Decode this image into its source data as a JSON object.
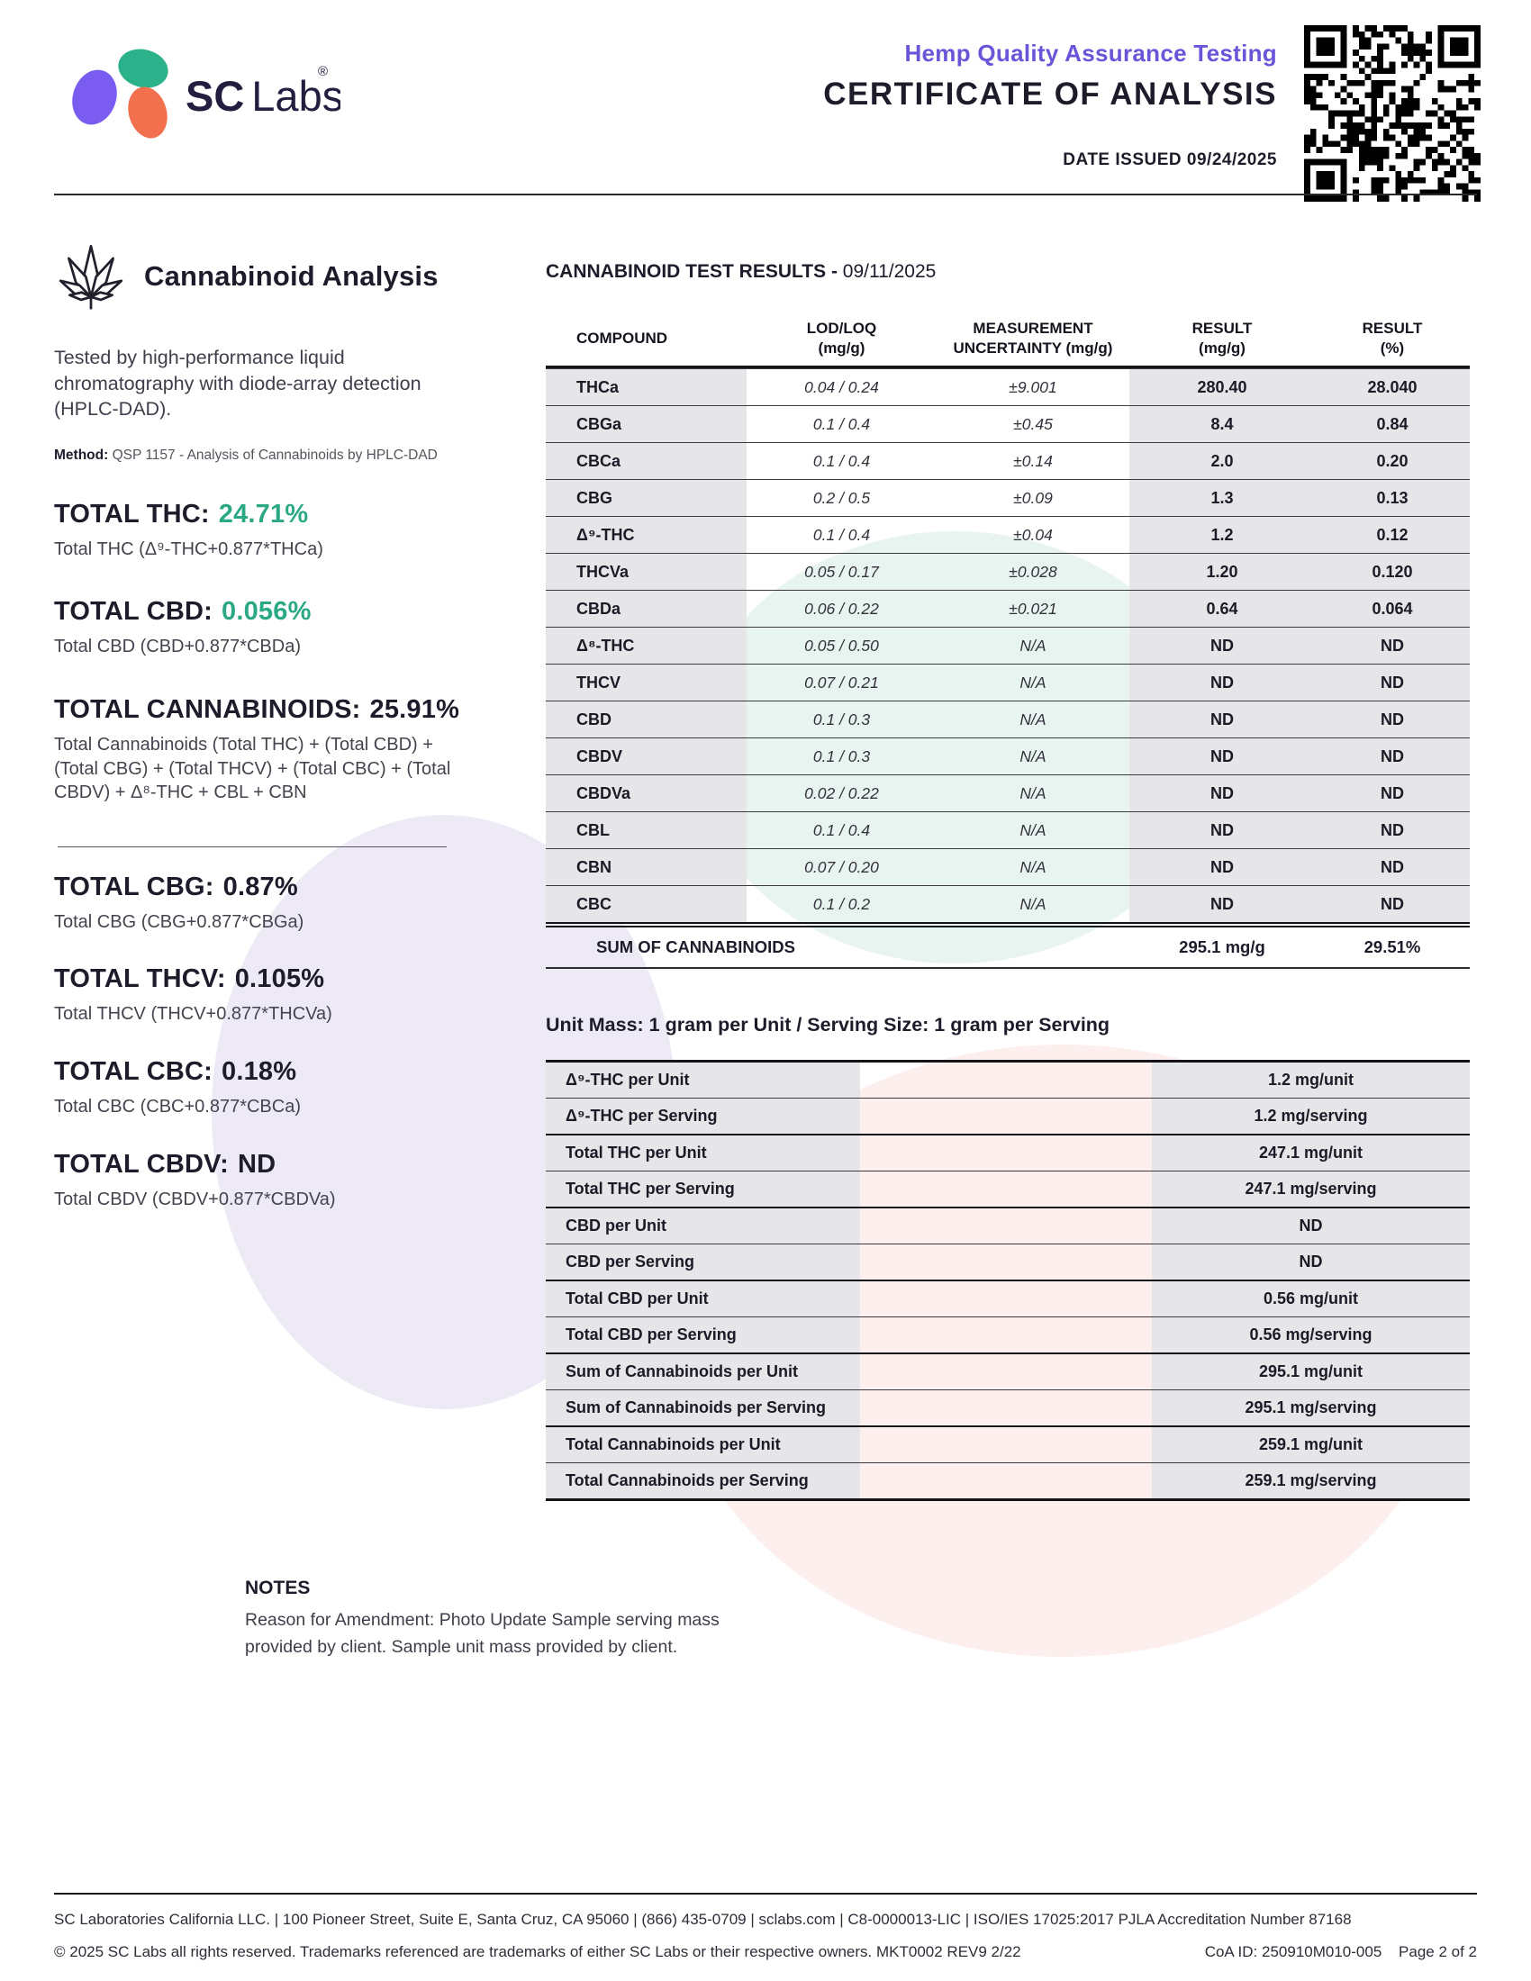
{
  "header": {
    "brand_bold": "SC",
    "brand_light": "Labs",
    "registered_mark": "®",
    "program_title": "Hemp Quality Assurance Testing",
    "document_title": "CERTIFICATE OF ANALYSIS",
    "date_issued": "DATE ISSUED 09/24/2025"
  },
  "analysis_panel": {
    "title": "Cannabinoid Analysis",
    "description": "Tested by high-performance liquid chromatography with diode-array detection (HPLC-DAD).",
    "method_label": "Method:",
    "method_text": "QSP 1157 - Analysis of Cannabinoids by HPLC-DAD"
  },
  "totals_primary": [
    {
      "label": "TOTAL THC:",
      "value": "24.71%",
      "accent": true,
      "formula": "Total THC (Δ⁹-THC+0.877*THCa)"
    },
    {
      "label": "TOTAL CBD:",
      "value": "0.056%",
      "accent": true,
      "formula": "Total CBD (CBD+0.877*CBDa)"
    },
    {
      "label": "TOTAL CANNABINOIDS:",
      "value": "25.91%",
      "accent": false,
      "formula": "Total Cannabinoids (Total THC) + (Total CBD) + (Total CBG) + (Total THCV) + (Total CBC) + (Total CBDV) + Δ⁸-THC + CBL + CBN"
    }
  ],
  "totals_secondary": [
    {
      "label": "TOTAL CBG:",
      "value": "0.87%",
      "accent": false,
      "formula": "Total CBG (CBG+0.877*CBGa)"
    },
    {
      "label": "TOTAL THCV:",
      "value": "0.105%",
      "accent": false,
      "formula": "Total THCV (THCV+0.877*THCVa)"
    },
    {
      "label": "TOTAL CBC:",
      "value": "0.18%",
      "accent": false,
      "formula": "Total CBC (CBC+0.877*CBCa)"
    },
    {
      "label": "TOTAL CBDV:",
      "value": "ND",
      "accent": false,
      "formula": "Total CBDV (CBDV+0.877*CBDVa)"
    }
  ],
  "results_table": {
    "title_bold": "CANNABINOID TEST RESULTS -",
    "title_date": "09/11/2025",
    "headers": [
      [
        "COMPOUND",
        ""
      ],
      [
        "LOD/LOQ",
        "(mg/g)"
      ],
      [
        "MEASUREMENT",
        "UNCERTAINTY (mg/g)"
      ],
      [
        "RESULT",
        "(mg/g)"
      ],
      [
        "RESULT",
        "(%)"
      ]
    ],
    "rows": [
      {
        "compound": "THCa",
        "lod_loq": "0.04 / 0.24",
        "uncertainty": "±9.001",
        "result_mg": "280.40",
        "result_pct": "28.040"
      },
      {
        "compound": "CBGa",
        "lod_loq": "0.1 / 0.4",
        "uncertainty": "±0.45",
        "result_mg": "8.4",
        "result_pct": "0.84"
      },
      {
        "compound": "CBCa",
        "lod_loq": "0.1 / 0.4",
        "uncertainty": "±0.14",
        "result_mg": "2.0",
        "result_pct": "0.20"
      },
      {
        "compound": "CBG",
        "lod_loq": "0.2 / 0.5",
        "uncertainty": "±0.09",
        "result_mg": "1.3",
        "result_pct": "0.13"
      },
      {
        "compound": "Δ⁹-THC",
        "lod_loq": "0.1 / 0.4",
        "uncertainty": "±0.04",
        "result_mg": "1.2",
        "result_pct": "0.12"
      },
      {
        "compound": "THCVa",
        "lod_loq": "0.05 / 0.17",
        "uncertainty": "±0.028",
        "result_mg": "1.20",
        "result_pct": "0.120"
      },
      {
        "compound": "CBDa",
        "lod_loq": "0.06 / 0.22",
        "uncertainty": "±0.021",
        "result_mg": "0.64",
        "result_pct": "0.064"
      },
      {
        "compound": "Δ⁸-THC",
        "lod_loq": "0.05 / 0.50",
        "uncertainty": "N/A",
        "result_mg": "ND",
        "result_pct": "ND"
      },
      {
        "compound": "THCV",
        "lod_loq": "0.07 / 0.21",
        "uncertainty": "N/A",
        "result_mg": "ND",
        "result_pct": "ND"
      },
      {
        "compound": "CBD",
        "lod_loq": "0.1 / 0.3",
        "uncertainty": "N/A",
        "result_mg": "ND",
        "result_pct": "ND"
      },
      {
        "compound": "CBDV",
        "lod_loq": "0.1 / 0.3",
        "uncertainty": "N/A",
        "result_mg": "ND",
        "result_pct": "ND"
      },
      {
        "compound": "CBDVa",
        "lod_loq": "0.02 / 0.22",
        "uncertainty": "N/A",
        "result_mg": "ND",
        "result_pct": "ND"
      },
      {
        "compound": "CBL",
        "lod_loq": "0.1 / 0.4",
        "uncertainty": "N/A",
        "result_mg": "ND",
        "result_pct": "ND"
      },
      {
        "compound": "CBN",
        "lod_loq": "0.07 / 0.20",
        "uncertainty": "N/A",
        "result_mg": "ND",
        "result_pct": "ND"
      },
      {
        "compound": "CBC",
        "lod_loq": "0.1 / 0.2",
        "uncertainty": "N/A",
        "result_mg": "ND",
        "result_pct": "ND"
      }
    ],
    "sum_label": "SUM OF CANNABINOIDS",
    "sum_mg": "295.1 mg/g",
    "sum_pct": "29.51%"
  },
  "unit_section": {
    "heading": "Unit Mass: 1 gram per Unit / Serving Size: 1 gram per Serving",
    "rows": [
      {
        "label": "Δ⁹-THC per Unit",
        "value": "1.2 mg/unit"
      },
      {
        "label": "Δ⁹-THC per Serving",
        "value": "1.2 mg/serving"
      },
      {
        "label": "Total THC per Unit",
        "value": "247.1 mg/unit"
      },
      {
        "label": "Total THC per Serving",
        "value": "247.1 mg/serving"
      },
      {
        "label": "CBD per Unit",
        "value": "ND"
      },
      {
        "label": "CBD per Serving",
        "value": "ND"
      },
      {
        "label": "Total CBD per Unit",
        "value": "0.56 mg/unit"
      },
      {
        "label": "Total CBD per Serving",
        "value": "0.56 mg/serving"
      },
      {
        "label": "Sum of Cannabinoids per Unit",
        "value": "295.1 mg/unit"
      },
      {
        "label": "Sum of Cannabinoids per Serving",
        "value": "295.1 mg/serving"
      },
      {
        "label": "Total Cannabinoids per Unit",
        "value": "259.1 mg/unit"
      },
      {
        "label": "Total Cannabinoids per Serving",
        "value": "259.1 mg/serving"
      }
    ]
  },
  "notes": {
    "title": "NOTES",
    "body": "Reason for Amendment: Photo Update Sample serving mass provided by client. Sample unit mass provided by client."
  },
  "footer": {
    "line1": "SC Laboratories California LLC. | 100 Pioneer Street, Suite E, Santa Cruz, CA 95060 | (866) 435-0709 | sclabs.com | C8-0000013-LIC | ISO/IES 17025:2017 PJLA Accreditation Number 87168",
    "line2": "© 2025 SC Labs all rights reserved. Trademarks referenced are trademarks of either SC Labs or their respective owners. MKT0002 REV9 2/22",
    "coa_id": "CoA ID: 250910M010-005",
    "page": "Page 2 of 2"
  },
  "colors": {
    "accent_teal": "#2aa984",
    "brand_purple": "#6a54d8",
    "logo_green": "#2cb28a",
    "logo_purple": "#7a5cf0",
    "logo_orange": "#f2704e",
    "table_gray": "#e6e6e8"
  }
}
